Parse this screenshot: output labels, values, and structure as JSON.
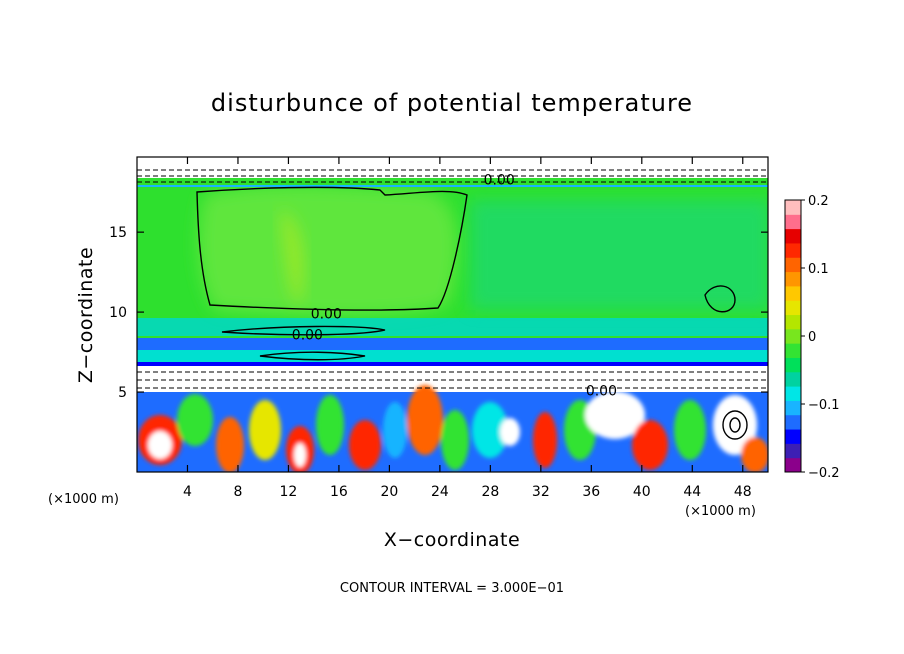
{
  "chart_data": {
    "type": "heatmap",
    "title": "disturbunce of potential temperature",
    "xlabel": "X−coordinate",
    "ylabel": "Z−coordinate",
    "x_unit": "(×1000 m)",
    "x_unit_right": "(×1000 m)",
    "xlim": [
      0,
      50
    ],
    "ylim": [
      0,
      19.7
    ],
    "x_ticks": [
      4,
      8,
      12,
      16,
      20,
      24,
      28,
      32,
      36,
      40,
      44,
      48
    ],
    "x_tick_labels": [
      "4",
      "8",
      "12",
      "16",
      "20",
      "24",
      "28",
      "32",
      "36",
      "40",
      "44",
      "48"
    ],
    "y_ticks": [
      5,
      10,
      15
    ],
    "y_tick_labels": [
      "5",
      "10",
      "15"
    ],
    "colorbar": {
      "min": -0.2,
      "max": 0.2,
      "ticks": [
        0.2,
        0.1,
        0,
        -0.1,
        -0.2
      ],
      "tick_labels": [
        "0.2",
        "0.1",
        "0",
        "−0.1",
        "−0.2"
      ],
      "colors": [
        "#8b008b",
        "#3c1fb4",
        "#0000ff",
        "#1e6cff",
        "#19b4ff",
        "#00e6e6",
        "#00d2a0",
        "#00e05a",
        "#33e333",
        "#78e61e",
        "#b4e600",
        "#e6e600",
        "#ffc800",
        "#ff9600",
        "#ff6400",
        "#ff2800",
        "#e60000",
        "#ff6e8c",
        "#ffbebe"
      ]
    },
    "contour_labels": [
      {
        "text": "0.00",
        "x": 28.7,
        "y": 18.3
      },
      {
        "text": "0.00",
        "x": 15.0,
        "y": 9.9
      },
      {
        "text": "0.00",
        "x": 13.5,
        "y": 8.6
      },
      {
        "text": "0.00",
        "x": 36.8,
        "y": 5.1
      }
    ],
    "contour_interval_label": "CONTOUR INTERVAL = 3.000E−01",
    "grid": false,
    "legend": "colorbar-right"
  }
}
